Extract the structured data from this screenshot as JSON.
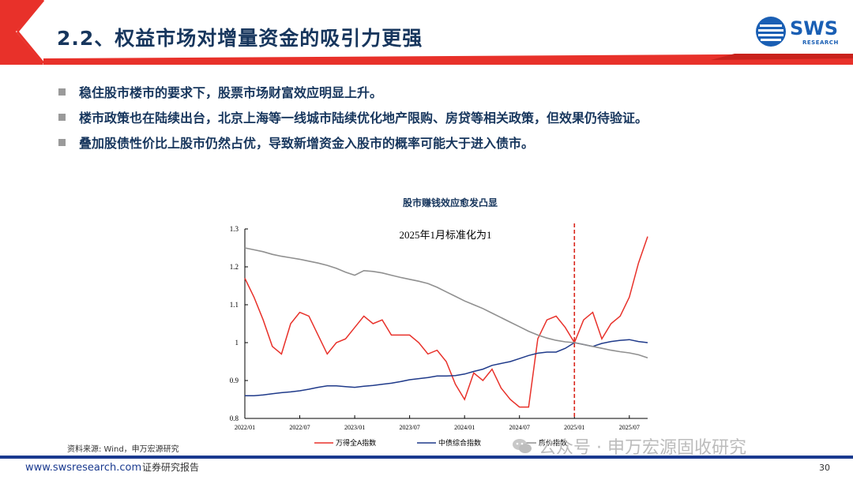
{
  "header": {
    "title": "2.2、权益市场对增量资金的吸引力更强",
    "logo_main": "SWS",
    "logo_sub": "RESEARCH"
  },
  "bullets": [
    "稳住股市楼市的要求下，股票市场财富效应明显上升。",
    "楼市政策也在陆续出台，北京上海等一线城市陆续优化地产限购、房贷等相关政策，但效果仍待验证。",
    "叠加股债性价比上股市仍然占优，导致新增资金入股市的概率可能大于进入债市。"
  ],
  "chart_data": {
    "type": "line",
    "title": "股市赚钱效应愈发凸显",
    "annotation": "2025年1月标准化为1",
    "x": [
      "2022/01",
      "2022/02",
      "2022/03",
      "2022/04",
      "2022/05",
      "2022/06",
      "2022/07",
      "2022/08",
      "2022/09",
      "2022/10",
      "2022/11",
      "2022/12",
      "2023/01",
      "2023/02",
      "2023/03",
      "2023/04",
      "2023/05",
      "2023/06",
      "2023/07",
      "2023/08",
      "2023/09",
      "2023/10",
      "2023/11",
      "2023/12",
      "2024/01",
      "2024/02",
      "2024/03",
      "2024/04",
      "2024/05",
      "2024/06",
      "2024/07",
      "2024/08",
      "2024/09",
      "2024/10",
      "2024/11",
      "2024/12",
      "2025/01",
      "2025/02",
      "2025/03",
      "2025/04",
      "2025/05",
      "2025/06",
      "2025/07",
      "2025/08",
      "2025/09"
    ],
    "tick_labels": [
      "2022/01",
      "2022/07",
      "2023/01",
      "2023/07",
      "2024/01",
      "2024/07",
      "2025/01",
      "2025/07"
    ],
    "ylim": [
      0.8,
      1.3
    ],
    "yticks": [
      "0.8",
      "0.9",
      "1",
      "1.1",
      "1.2",
      "1.3"
    ],
    "vline_at": "2025/01",
    "legend_position": "bottom",
    "series": [
      {
        "name": "万得全A指数",
        "color": "#e8312a",
        "values": [
          1.17,
          1.12,
          1.06,
          0.99,
          0.97,
          1.05,
          1.08,
          1.07,
          1.02,
          0.97,
          1.0,
          1.01,
          1.04,
          1.07,
          1.05,
          1.06,
          1.02,
          1.02,
          1.02,
          1.0,
          0.97,
          0.98,
          0.95,
          0.89,
          0.85,
          0.92,
          0.9,
          0.93,
          0.88,
          0.85,
          0.83,
          0.83,
          1.01,
          1.06,
          1.07,
          1.04,
          1.0,
          1.06,
          1.08,
          1.01,
          1.05,
          1.07,
          1.12,
          1.21,
          1.28
        ]
      },
      {
        "name": "中债综合指数",
        "color": "#1f3a8a",
        "values": [
          0.86,
          0.86,
          0.862,
          0.865,
          0.868,
          0.87,
          0.873,
          0.877,
          0.882,
          0.886,
          0.886,
          0.884,
          0.882,
          0.885,
          0.887,
          0.89,
          0.893,
          0.897,
          0.902,
          0.905,
          0.908,
          0.912,
          0.912,
          0.913,
          0.917,
          0.924,
          0.93,
          0.94,
          0.945,
          0.95,
          0.958,
          0.966,
          0.972,
          0.975,
          0.975,
          0.985,
          1.0,
          0.995,
          0.99,
          0.998,
          1.003,
          1.006,
          1.008,
          1.003,
          1.0
        ]
      },
      {
        "name": "房价指数",
        "color": "#909090",
        "values": [
          1.25,
          1.245,
          1.24,
          1.233,
          1.228,
          1.224,
          1.22,
          1.215,
          1.21,
          1.204,
          1.196,
          1.186,
          1.178,
          1.19,
          1.188,
          1.184,
          1.178,
          1.172,
          1.167,
          1.162,
          1.156,
          1.146,
          1.134,
          1.122,
          1.11,
          1.1,
          1.09,
          1.078,
          1.066,
          1.054,
          1.042,
          1.03,
          1.02,
          1.012,
          1.006,
          1.002,
          1.0,
          0.995,
          0.99,
          0.985,
          0.98,
          0.976,
          0.973,
          0.968,
          0.96
        ]
      }
    ]
  },
  "source": "资料来源: Wind，申万宏源研究",
  "watermark": "公众号 · 申万宏源固收研究",
  "footer": {
    "url": "www.swsresearch.com",
    "tag": "证券研究报告",
    "page": "30"
  }
}
